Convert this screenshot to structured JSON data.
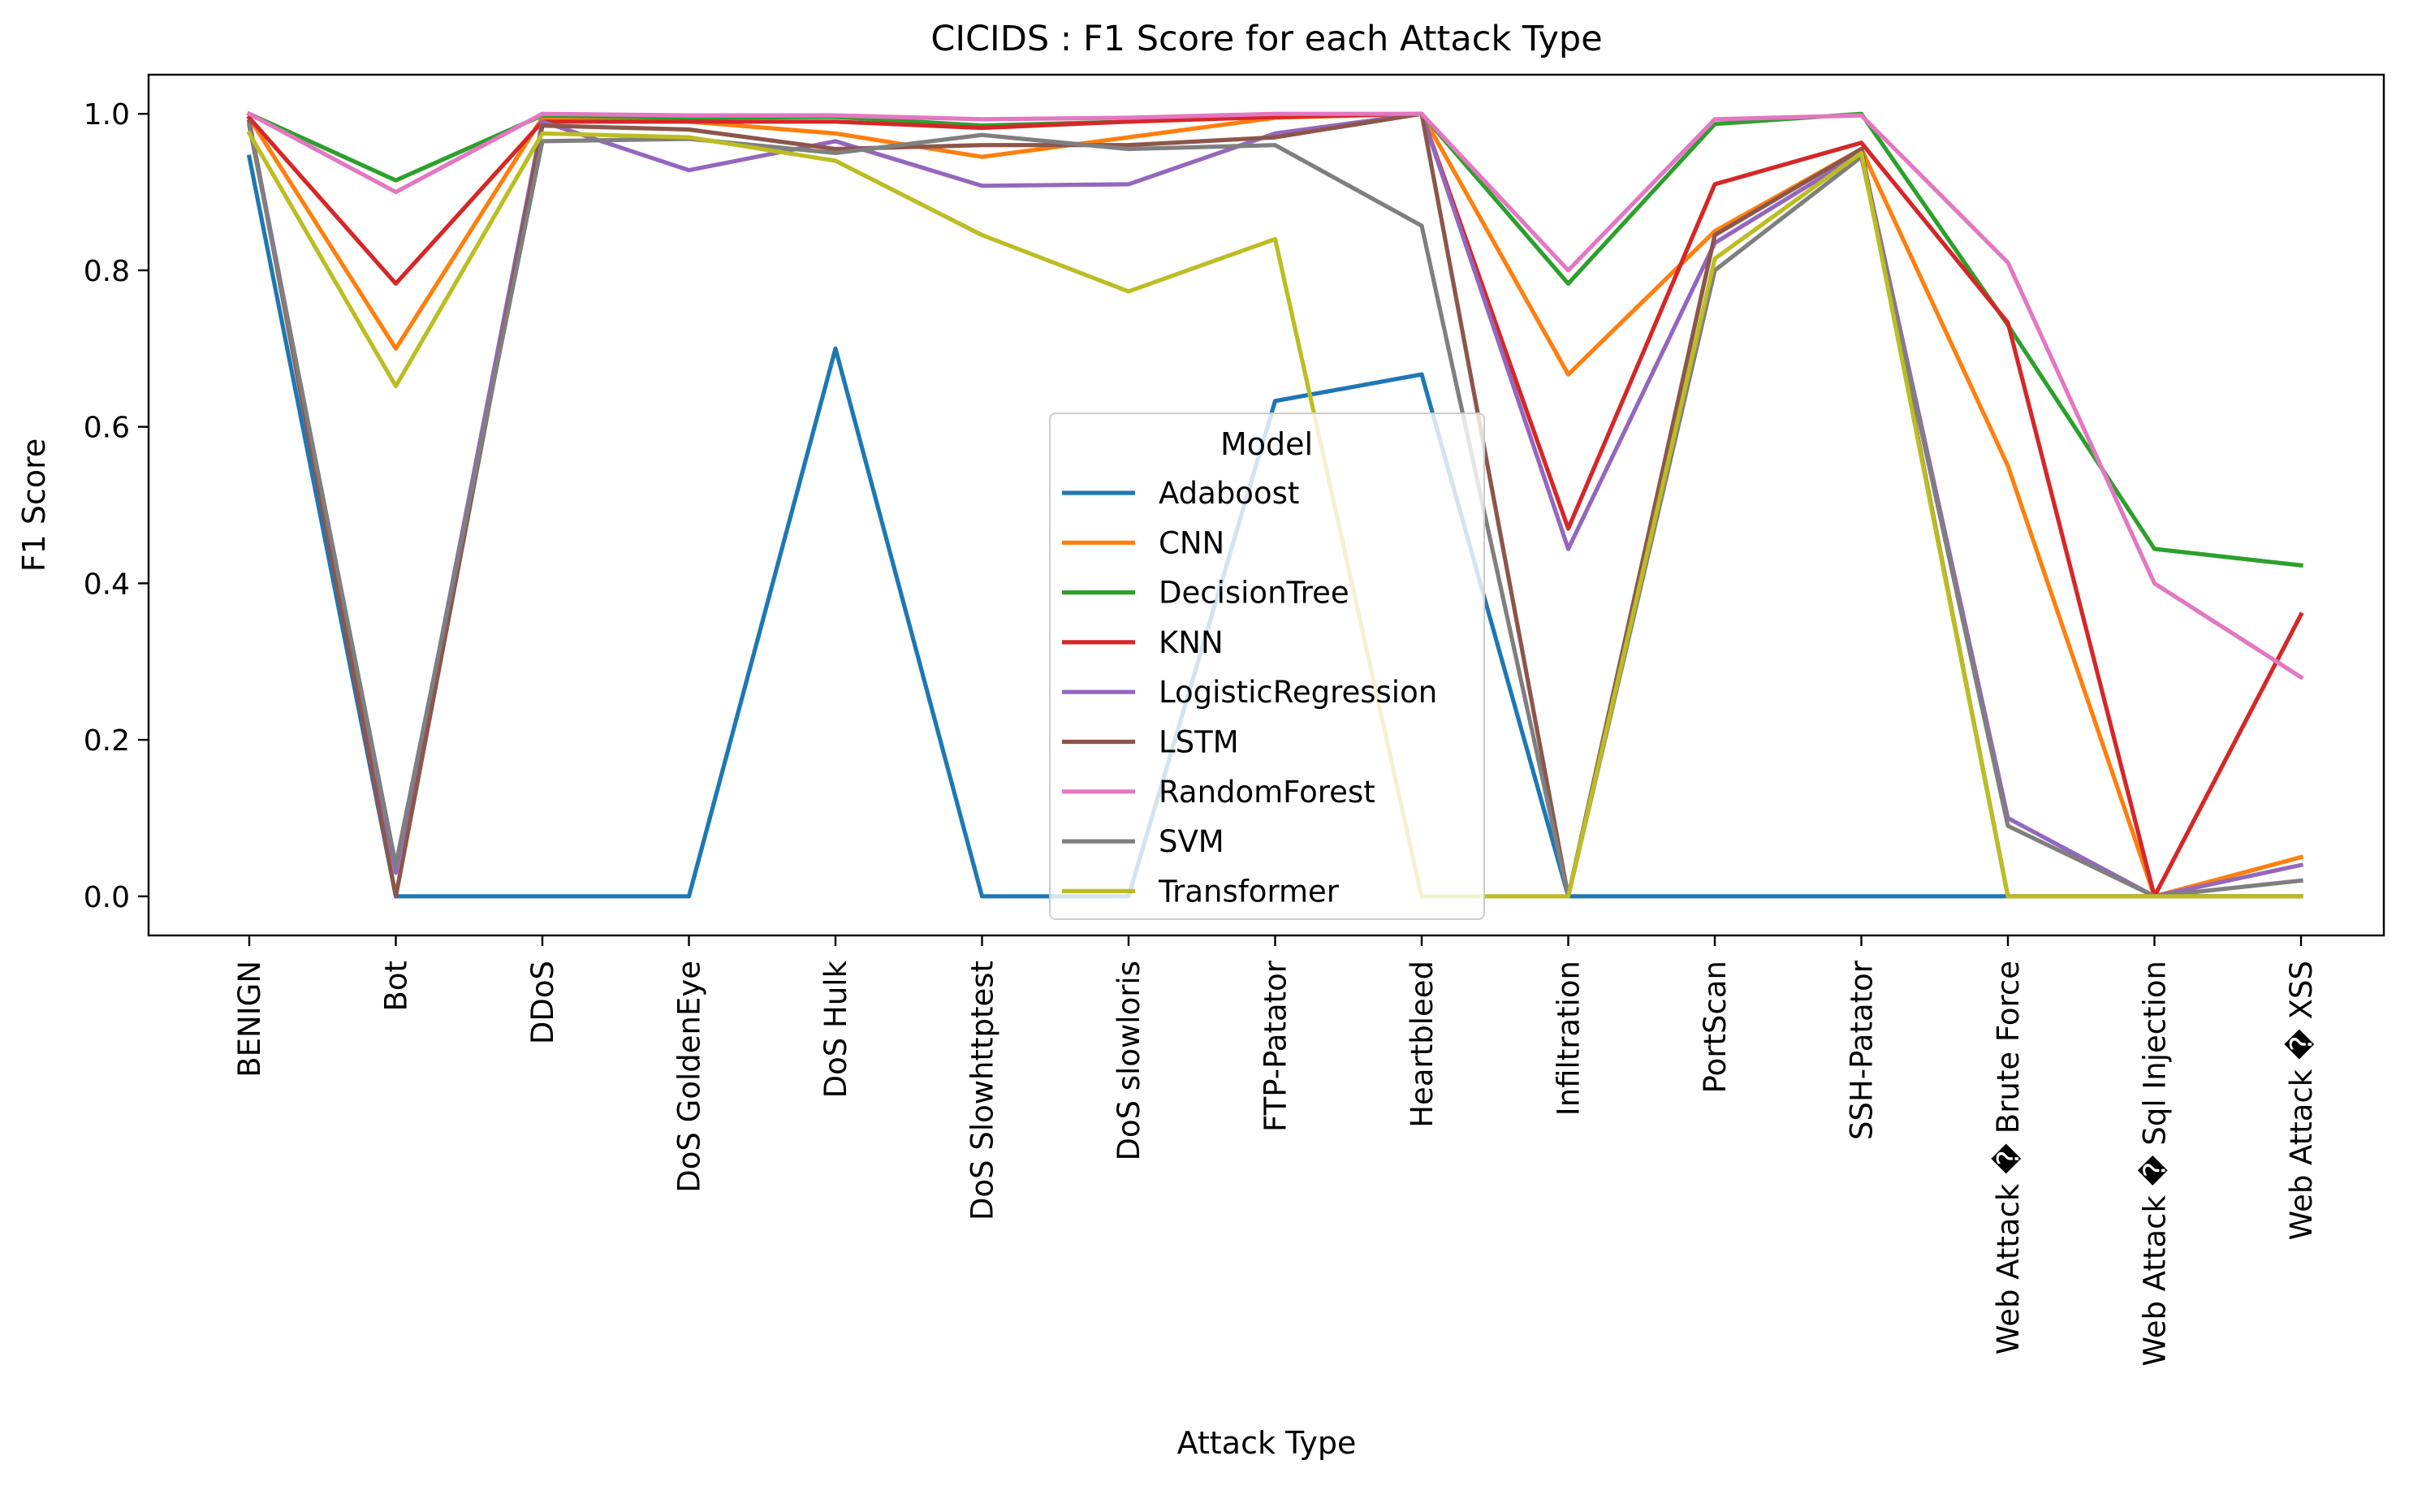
{
  "chart_data": {
    "type": "line",
    "title": "CICIDS : F1 Score for each Attack Type",
    "xlabel": "Attack Type",
    "ylabel": "F1 Score",
    "ylim": [
      -0.05,
      1.05
    ],
    "yticks": [
      "0.0",
      "0.2",
      "0.4",
      "0.6",
      "0.8",
      "1.0"
    ],
    "grid": false,
    "legend": {
      "title": "Model",
      "placement": "center"
    },
    "categories": [
      "BENIGN",
      "Bot",
      "DDoS",
      "DoS GoldenEye",
      "DoS Hulk",
      "DoS Slowhttptest",
      "DoS slowloris",
      "FTP-Patator",
      "Heartbleed",
      "Infiltration",
      "PortScan",
      "SSH-Patator",
      "Web Attack � Brute Force",
      "Web Attack � Sql Injection",
      "Web Attack � XSS"
    ],
    "series": [
      {
        "name": "Adaboost",
        "color": "#1f77b4",
        "values": [
          0.945,
          0.0,
          0.0,
          0.0,
          0.7,
          0.0,
          0.0,
          0.633,
          0.667,
          0.0,
          0.0,
          0.0,
          0.0,
          0.0,
          0.0
        ]
      },
      {
        "name": "CNN",
        "color": "#ff7f0e",
        "values": [
          0.995,
          0.7,
          0.995,
          0.99,
          0.975,
          0.945,
          0.97,
          0.995,
          1.0,
          0.667,
          0.85,
          0.955,
          0.55,
          0.0,
          0.05
        ]
      },
      {
        "name": "DecisionTree",
        "color": "#2ca02c",
        "values": [
          1.0,
          0.915,
          0.998,
          0.995,
          0.996,
          0.985,
          0.99,
          0.997,
          1.0,
          0.783,
          0.987,
          1.0,
          0.73,
          0.444,
          0.423
        ]
      },
      {
        "name": "KNN",
        "color": "#d62728",
        "values": [
          0.995,
          0.783,
          0.99,
          0.99,
          0.99,
          0.982,
          0.99,
          0.996,
          1.0,
          0.47,
          0.91,
          0.963,
          0.733,
          0.0,
          0.36
        ]
      },
      {
        "name": "LogisticRegression",
        "color": "#9467bd",
        "values": [
          0.99,
          0.03,
          0.99,
          0.928,
          0.965,
          0.908,
          0.91,
          0.975,
          1.0,
          0.444,
          0.835,
          0.95,
          0.1,
          0.0,
          0.04
        ]
      },
      {
        "name": "LSTM",
        "color": "#8c564b",
        "values": [
          0.99,
          0.0,
          0.985,
          0.98,
          0.955,
          0.96,
          0.96,
          0.97,
          1.0,
          0.0,
          0.845,
          0.955,
          0.0,
          0.0,
          0.0
        ]
      },
      {
        "name": "RandomForest",
        "color": "#e377c2",
        "values": [
          1.0,
          0.9,
          1.0,
          0.998,
          0.998,
          0.993,
          0.995,
          1.0,
          1.0,
          0.8,
          0.993,
          0.998,
          0.81,
          0.4,
          0.28
        ]
      },
      {
        "name": "SVM",
        "color": "#7f7f7f",
        "values": [
          0.985,
          0.04,
          0.965,
          0.968,
          0.95,
          0.973,
          0.955,
          0.96,
          0.857,
          0.0,
          0.8,
          0.945,
          0.09,
          0.0,
          0.02
        ]
      },
      {
        "name": "Transformer",
        "color": "#bcbd22",
        "values": [
          0.975,
          0.652,
          0.975,
          0.97,
          0.94,
          0.845,
          0.773,
          0.84,
          0.0,
          0.0,
          0.815,
          0.95,
          0.0,
          0.0,
          0.0
        ]
      }
    ]
  }
}
